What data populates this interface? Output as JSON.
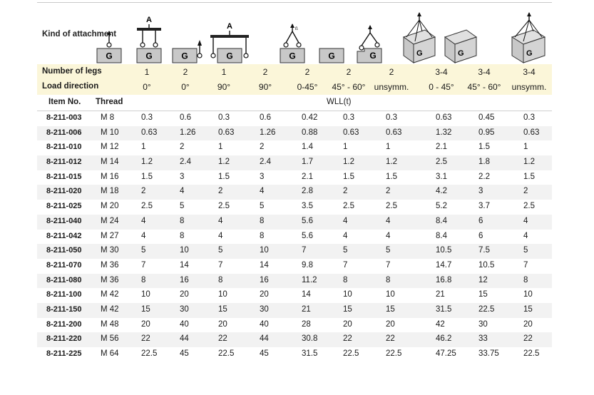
{
  "header": {
    "kind_label": "Kind of attachment",
    "legs_label": "Number of legs",
    "direction_label": "Load direction",
    "item_label": "Item No.",
    "thread_label": "Thread",
    "wll_label": "WLL(t)",
    "legs": [
      "1",
      "2",
      "1",
      "2",
      "2",
      "2",
      "2",
      "3-4",
      "3-4",
      "3-4"
    ],
    "directions": [
      "0°",
      "0°",
      "90°",
      "90°",
      "0-45°",
      "45° - 60°",
      "unsymm.",
      "0 - 45°",
      "45° - 60°",
      "unsymm."
    ]
  },
  "icons": {
    "load_letter": "G",
    "beam_letter": "A",
    "angle_letter": "ß",
    "names": [
      "single-leg-vertical-icon",
      "two-leg-beam-vertical-icon",
      "single-leg-side-icon",
      "two-leg-beam-side-icon",
      "two-leg-angle-icon",
      "two-leg-angle-icon",
      "two-leg-unsymmetric-icon",
      "four-leg-box-icon",
      "four-leg-box-icon",
      "four-leg-box-unsymmetric-icon"
    ]
  },
  "colors": {
    "header_band": "#fbf6d9",
    "stripe": "#f2f2f2",
    "icon_fill": "#c8c8c8"
  },
  "rows": [
    {
      "item": "8-211-003",
      "thread": "M  8",
      "values": [
        "0.3",
        "0.6",
        "0.3",
        "0.6",
        "0.42",
        "0.3",
        "0.3",
        "0.63",
        "0.45",
        "0.3"
      ]
    },
    {
      "item": "8-211-006",
      "thread": "M 10",
      "values": [
        "0.63",
        "1.26",
        "0.63",
        "1.26",
        "0.88",
        "0.63",
        "0.63",
        "1.32",
        "0.95",
        "0.63"
      ]
    },
    {
      "item": "8-211-010",
      "thread": "M 12",
      "values": [
        "1",
        "2",
        "1",
        "2",
        "1.4",
        "1",
        "1",
        "2.1",
        "1.5",
        "1"
      ]
    },
    {
      "item": "8-211-012",
      "thread": "M 14",
      "values": [
        "1.2",
        "2.4",
        "1.2",
        "2.4",
        "1.7",
        "1.2",
        "1.2",
        "2.5",
        "1.8",
        "1.2"
      ]
    },
    {
      "item": "8-211-015",
      "thread": "M 16",
      "values": [
        "1.5",
        "3",
        "1.5",
        "3",
        "2.1",
        "1.5",
        "1.5",
        "3.1",
        "2.2",
        "1.5"
      ]
    },
    {
      "item": "8-211-020",
      "thread": "M 18",
      "values": [
        "2",
        "4",
        "2",
        "4",
        "2.8",
        "2",
        "2",
        "4.2",
        "3",
        "2"
      ]
    },
    {
      "item": "8-211-025",
      "thread": "M 20",
      "values": [
        "2.5",
        "5",
        "2.5",
        "5",
        "3.5",
        "2.5",
        "2.5",
        "5.2",
        "3.7",
        "2.5"
      ]
    },
    {
      "item": "8-211-040",
      "thread": "M 24",
      "values": [
        "4",
        "8",
        "4",
        "8",
        "5.6",
        "4",
        "4",
        "8.4",
        "6",
        "4"
      ]
    },
    {
      "item": "8-211-042",
      "thread": "M 27",
      "values": [
        "4",
        "8",
        "4",
        "8",
        "5.6",
        "4",
        "4",
        "8.4",
        "6",
        "4"
      ]
    },
    {
      "item": "8-211-050",
      "thread": "M 30",
      "values": [
        "5",
        "10",
        "5",
        "10",
        "7",
        "5",
        "5",
        "10.5",
        "7.5",
        "5"
      ]
    },
    {
      "item": "8-211-070",
      "thread": "M 36",
      "values": [
        "7",
        "14",
        "7",
        "14",
        "9.8",
        "7",
        "7",
        "14.7",
        "10.5",
        "7"
      ]
    },
    {
      "item": "8-211-080",
      "thread": "M 36",
      "values": [
        "8",
        "16",
        "8",
        "16",
        "11.2",
        "8",
        "8",
        "16.8",
        "12",
        "8"
      ]
    },
    {
      "item": "8-211-100",
      "thread": "M 42",
      "values": [
        "10",
        "20",
        "10",
        "20",
        "14",
        "10",
        "10",
        "21",
        "15",
        "10"
      ]
    },
    {
      "item": "8-211-150",
      "thread": "M 42",
      "values": [
        "15",
        "30",
        "15",
        "30",
        "21",
        "15",
        "15",
        "31.5",
        "22.5",
        "15"
      ]
    },
    {
      "item": "8-211-200",
      "thread": "M 48",
      "values": [
        "20",
        "40",
        "20",
        "40",
        "28",
        "20",
        "20",
        "42",
        "30",
        "20"
      ]
    },
    {
      "item": "8-211-220",
      "thread": "M 56",
      "values": [
        "22",
        "44",
        "22",
        "44",
        "30.8",
        "22",
        "22",
        "46.2",
        "33",
        "22"
      ]
    },
    {
      "item": "8-211-225",
      "thread": "M 64",
      "values": [
        "22.5",
        "45",
        "22.5",
        "45",
        "31.5",
        "22.5",
        "22.5",
        "47.25",
        "33.75",
        "22.5"
      ]
    }
  ]
}
